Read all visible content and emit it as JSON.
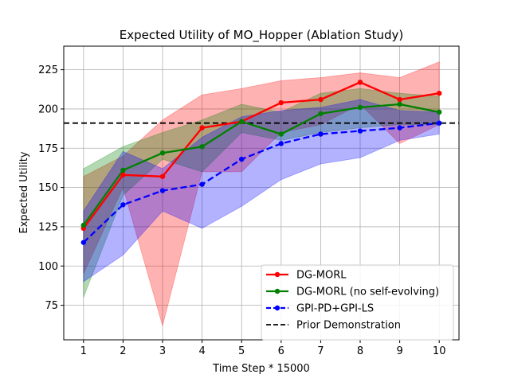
{
  "chart_data": {
    "type": "line",
    "title": "Expected Utility of MO_Hopper (Ablation Study)",
    "xlabel": "Time Step * 15000",
    "ylabel": "Expected Utility",
    "x": [
      1,
      2,
      3,
      4,
      5,
      6,
      7,
      8,
      9,
      10
    ],
    "xlim": [
      0.5,
      10.5
    ],
    "ylim": [
      53,
      240
    ],
    "xticks": [
      1,
      2,
      3,
      4,
      5,
      6,
      7,
      8,
      9,
      10
    ],
    "yticks": [
      75,
      100,
      125,
      150,
      175,
      200,
      225
    ],
    "grid": true,
    "legend_position": "lower-right",
    "series": [
      {
        "name": "DG-MORL",
        "color": "#ff0000",
        "line_style": "solid",
        "marker": "circle",
        "values": [
          124,
          158,
          157,
          188,
          192,
          204,
          206,
          217,
          206,
          210
        ],
        "band_low": [
          95,
          150,
          62,
          160,
          160,
          185,
          190,
          203,
          178,
          190
        ],
        "band_high": [
          157,
          170,
          193,
          209,
          213,
          218,
          220,
          223,
          220,
          230
        ]
      },
      {
        "name": "DG-MORL (no self-evolving)",
        "color": "#008000",
        "line_style": "solid",
        "marker": "circle",
        "values": [
          126,
          161,
          172,
          176,
          192,
          184,
          197,
          201,
          203,
          198
        ],
        "band_low": [
          80,
          145,
          168,
          160,
          185,
          180,
          185,
          188,
          190,
          190
        ],
        "band_high": [
          162,
          176,
          185,
          193,
          203,
          198,
          210,
          213,
          210,
          208
        ]
      },
      {
        "name": "GPI-PD+GPI-LS",
        "color": "#0000ff",
        "line_style": "dashed",
        "marker": "circle",
        "values": [
          115,
          139,
          148,
          152,
          168,
          178,
          184,
          186,
          188,
          191
        ],
        "band_low": [
          90,
          107,
          135,
          124,
          138,
          155,
          165,
          169,
          180,
          184
        ],
        "band_high": [
          135,
          173,
          162,
          182,
          195,
          199,
          201,
          206,
          199,
          198
        ]
      }
    ],
    "reference_lines": [
      {
        "name": "Prior Demonstration",
        "y": 191,
        "color": "#000000",
        "line_style": "dashed"
      }
    ]
  }
}
